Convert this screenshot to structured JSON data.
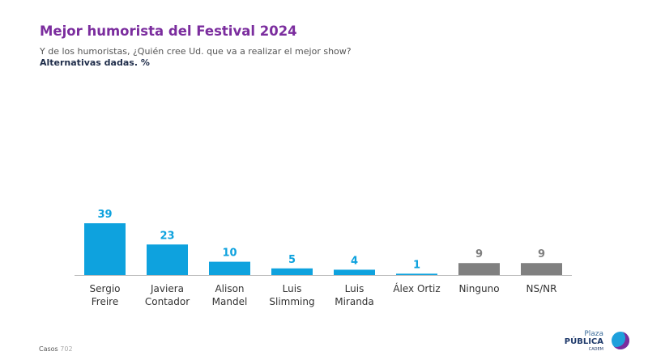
{
  "header": {
    "title": "Mejor humorista del Festival 2024",
    "subtitle": "Y de los humoristas, ¿Quién cree Ud. que va a realizar el mejor show?",
    "subtitle2": "Alternativas dadas. %"
  },
  "footer": {
    "casos_label": "Casos",
    "casos_value": "702"
  },
  "logo": {
    "line1": "Plaza",
    "line2": "PÚBLICA",
    "line3": "CADEM"
  },
  "colors": {
    "candidate": "#0ea2de",
    "other": "#808080",
    "label": "#0ea2de",
    "label_other": "#808080"
  },
  "chart_data": {
    "type": "bar",
    "title": "Mejor humorista del Festival 2024",
    "categories": [
      [
        "Sergio",
        "Freire"
      ],
      [
        "Javiera",
        "Contador"
      ],
      [
        "Alison",
        "Mandel"
      ],
      [
        "Luis",
        "Slimming"
      ],
      [
        "Luis",
        "Miranda"
      ],
      [
        "Álex Ortiz"
      ],
      [
        "Ninguno"
      ],
      [
        "NS/NR"
      ]
    ],
    "values": [
      39,
      23,
      10,
      5,
      4,
      1,
      9,
      9
    ],
    "kinds": [
      "candidate",
      "candidate",
      "candidate",
      "candidate",
      "candidate",
      "candidate",
      "other",
      "other"
    ],
    "ylim": [
      0,
      40
    ],
    "grid": false,
    "legend": "none"
  }
}
